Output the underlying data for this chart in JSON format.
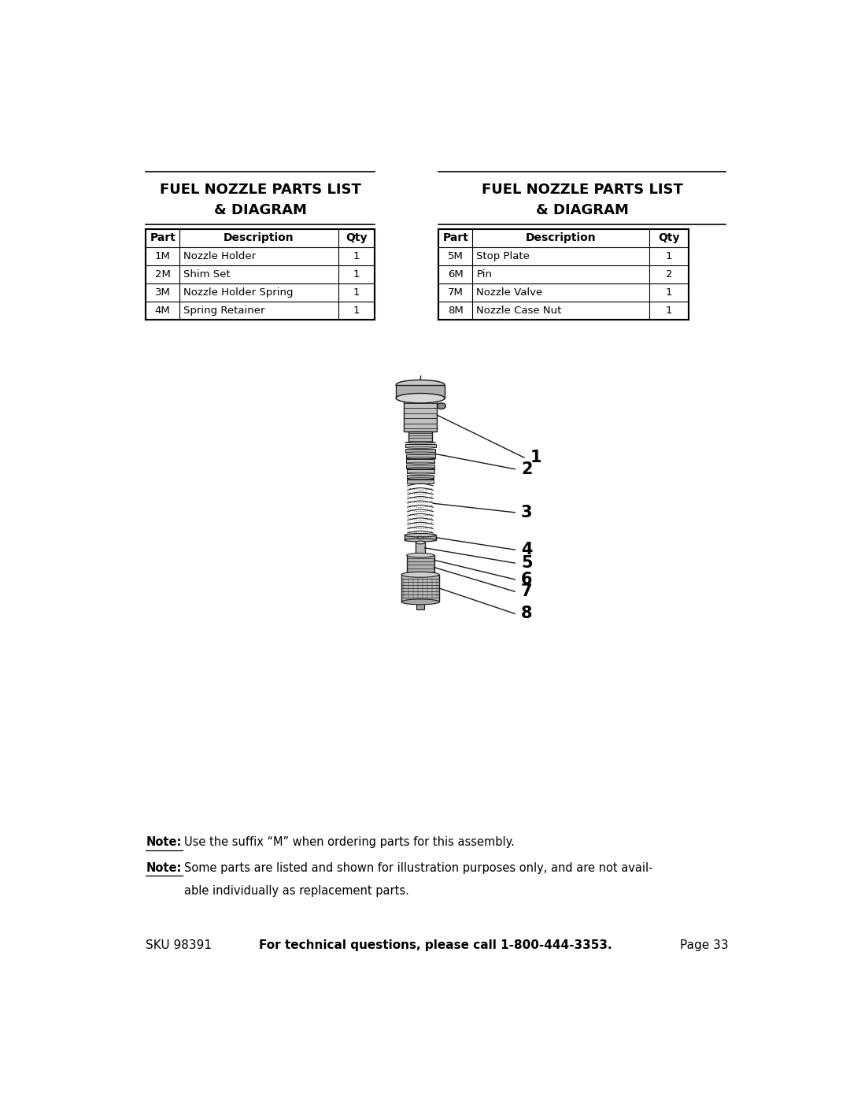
{
  "title1_line1": "FUEL NOZZLE PARTS LIST",
  "title1_line2": "& DIAGRAM",
  "title2_line1": "FUEL NOZZLE PARTS LIST",
  "title2_line2": "& DIAGRAM",
  "table1_headers": [
    "Part",
    "Description",
    "Qty"
  ],
  "table1_rows": [
    [
      "1M",
      "Nozzle Holder",
      "1"
    ],
    [
      "2M",
      "Shim Set",
      "1"
    ],
    [
      "3M",
      "Nozzle Holder Spring",
      "1"
    ],
    [
      "4M",
      "Spring Retainer",
      "1"
    ]
  ],
  "table2_headers": [
    "Part",
    "Description",
    "Qty"
  ],
  "table2_rows": [
    [
      "5M",
      "Stop Plate",
      "1"
    ],
    [
      "6M",
      "Pin",
      "2"
    ],
    [
      "7M",
      "Nozzle Valve",
      "1"
    ],
    [
      "8M",
      "Nozzle Case Nut",
      "1"
    ]
  ],
  "note1_bold": "Note:",
  "note1_text": "Use the suffix “M” when ordering parts for this assembly.",
  "note2_bold": "Note:",
  "note2_text_line1": "Some parts are listed and shown for illustration purposes only, and are not avail-",
  "note2_text_line2": "able individually as replacement parts.",
  "footer_sku": "SKU 98391",
  "footer_bold": "For technical questions, please call 1-800-444-3353.",
  "footer_page": "Page 33",
  "bg_color": "#ffffff",
  "text_color": "#000000"
}
